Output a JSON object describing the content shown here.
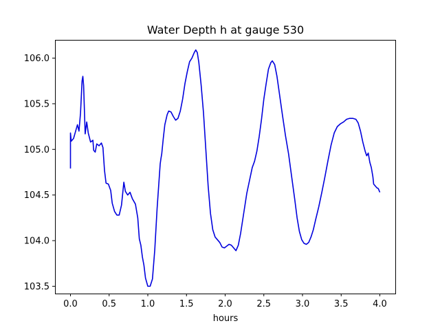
{
  "chart_data": {
    "type": "line",
    "title": "Water Depth h at gauge 530",
    "xlabel": "hours",
    "ylabel": "",
    "xlim": [
      -0.2,
      4.2
    ],
    "ylim": [
      103.42,
      106.2
    ],
    "xticks": [
      0.0,
      0.5,
      1.0,
      1.5,
      2.0,
      2.5,
      3.0,
      3.5,
      4.0
    ],
    "xtick_labels": [
      "0.0",
      "0.5",
      "1.0",
      "1.5",
      "2.0",
      "2.5",
      "3.0",
      "3.5",
      "4.0"
    ],
    "yticks": [
      103.5,
      104.0,
      104.5,
      105.0,
      105.5,
      106.0
    ],
    "ytick_labels": [
      "103.5",
      "104.0",
      "104.5",
      "105.0",
      "105.5",
      "106.0"
    ],
    "grid": false,
    "line_color": "#0000dd",
    "series": [
      {
        "name": "",
        "points": [
          [
            0.0,
            104.79
          ],
          [
            0.0,
            105.18
          ],
          [
            0.01,
            105.09
          ],
          [
            0.04,
            105.12
          ],
          [
            0.07,
            105.21
          ],
          [
            0.09,
            105.27
          ],
          [
            0.11,
            105.2
          ],
          [
            0.13,
            105.4
          ],
          [
            0.15,
            105.75
          ],
          [
            0.16,
            105.8
          ],
          [
            0.17,
            105.7
          ],
          [
            0.19,
            105.17
          ],
          [
            0.21,
            105.3
          ],
          [
            0.23,
            105.18
          ],
          [
            0.26,
            105.08
          ],
          [
            0.29,
            105.1
          ],
          [
            0.3,
            104.99
          ],
          [
            0.32,
            104.97
          ],
          [
            0.34,
            105.06
          ],
          [
            0.37,
            105.04
          ],
          [
            0.4,
            105.07
          ],
          [
            0.42,
            105.02
          ],
          [
            0.44,
            104.77
          ],
          [
            0.46,
            104.63
          ],
          [
            0.49,
            104.62
          ],
          [
            0.52,
            104.55
          ],
          [
            0.54,
            104.41
          ],
          [
            0.57,
            104.32
          ],
          [
            0.6,
            104.28
          ],
          [
            0.63,
            104.28
          ],
          [
            0.66,
            104.39
          ],
          [
            0.69,
            104.64
          ],
          [
            0.71,
            104.54
          ],
          [
            0.74,
            104.5
          ],
          [
            0.77,
            104.53
          ],
          [
            0.8,
            104.46
          ],
          [
            0.82,
            104.43
          ],
          [
            0.84,
            104.4
          ],
          [
            0.87,
            104.25
          ],
          [
            0.89,
            104.02
          ],
          [
            0.91,
            103.95
          ],
          [
            0.93,
            103.82
          ],
          [
            0.95,
            103.73
          ],
          [
            0.97,
            103.59
          ],
          [
            1.0,
            103.5
          ],
          [
            1.03,
            103.5
          ],
          [
            1.06,
            103.58
          ],
          [
            1.09,
            103.9
          ],
          [
            1.12,
            104.35
          ],
          [
            1.16,
            104.84
          ],
          [
            1.17,
            104.9
          ],
          [
            1.18,
            104.95
          ],
          [
            1.2,
            105.12
          ],
          [
            1.22,
            105.27
          ],
          [
            1.25,
            105.38
          ],
          [
            1.27,
            105.42
          ],
          [
            1.3,
            105.41
          ],
          [
            1.33,
            105.36
          ],
          [
            1.36,
            105.32
          ],
          [
            1.39,
            105.34
          ],
          [
            1.42,
            105.42
          ],
          [
            1.45,
            105.55
          ],
          [
            1.48,
            105.72
          ],
          [
            1.51,
            105.85
          ],
          [
            1.54,
            105.96
          ],
          [
            1.57,
            106.0
          ],
          [
            1.6,
            106.06
          ],
          [
            1.62,
            106.09
          ],
          [
            1.64,
            106.06
          ],
          [
            1.66,
            105.95
          ],
          [
            1.69,
            105.7
          ],
          [
            1.72,
            105.4
          ],
          [
            1.75,
            105.0
          ],
          [
            1.78,
            104.6
          ],
          [
            1.81,
            104.3
          ],
          [
            1.84,
            104.12
          ],
          [
            1.87,
            104.04
          ],
          [
            1.9,
            104.01
          ],
          [
            1.93,
            103.98
          ],
          [
            1.96,
            103.93
          ],
          [
            1.99,
            103.92
          ],
          [
            2.02,
            103.94
          ],
          [
            2.05,
            103.96
          ],
          [
            2.08,
            103.95
          ],
          [
            2.11,
            103.92
          ],
          [
            2.14,
            103.89
          ],
          [
            2.17,
            103.95
          ],
          [
            2.2,
            104.08
          ],
          [
            2.24,
            104.3
          ],
          [
            2.28,
            104.52
          ],
          [
            2.32,
            104.68
          ],
          [
            2.35,
            104.8
          ],
          [
            2.38,
            104.87
          ],
          [
            2.41,
            104.98
          ],
          [
            2.44,
            105.14
          ],
          [
            2.47,
            105.33
          ],
          [
            2.5,
            105.55
          ],
          [
            2.53,
            105.72
          ],
          [
            2.56,
            105.88
          ],
          [
            2.59,
            105.95
          ],
          [
            2.61,
            105.97
          ],
          [
            2.64,
            105.93
          ],
          [
            2.67,
            105.8
          ],
          [
            2.7,
            105.62
          ],
          [
            2.74,
            105.38
          ],
          [
            2.78,
            105.15
          ],
          [
            2.82,
            104.95
          ],
          [
            2.86,
            104.7
          ],
          [
            2.9,
            104.45
          ],
          [
            2.93,
            104.25
          ],
          [
            2.96,
            104.1
          ],
          [
            2.99,
            104.01
          ],
          [
            3.02,
            103.97
          ],
          [
            3.05,
            103.96
          ],
          [
            3.08,
            103.98
          ],
          [
            3.11,
            104.04
          ],
          [
            3.14,
            104.12
          ],
          [
            3.17,
            104.23
          ],
          [
            3.21,
            104.37
          ],
          [
            3.25,
            104.53
          ],
          [
            3.29,
            104.7
          ],
          [
            3.33,
            104.88
          ],
          [
            3.37,
            105.05
          ],
          [
            3.41,
            105.18
          ],
          [
            3.45,
            105.25
          ],
          [
            3.49,
            105.28
          ],
          [
            3.53,
            105.3
          ],
          [
            3.57,
            105.33
          ],
          [
            3.61,
            105.34
          ],
          [
            3.65,
            105.34
          ],
          [
            3.69,
            105.33
          ],
          [
            3.72,
            105.29
          ],
          [
            3.75,
            105.2
          ],
          [
            3.78,
            105.08
          ],
          [
            3.81,
            104.98
          ],
          [
            3.83,
            104.93
          ],
          [
            3.85,
            104.96
          ],
          [
            3.87,
            104.86
          ],
          [
            3.89,
            104.8
          ],
          [
            3.91,
            104.7
          ],
          [
            3.92,
            104.62
          ],
          [
            3.94,
            104.6
          ],
          [
            3.96,
            104.58
          ],
          [
            3.98,
            104.57
          ],
          [
            4.0,
            104.53
          ]
        ]
      }
    ]
  }
}
